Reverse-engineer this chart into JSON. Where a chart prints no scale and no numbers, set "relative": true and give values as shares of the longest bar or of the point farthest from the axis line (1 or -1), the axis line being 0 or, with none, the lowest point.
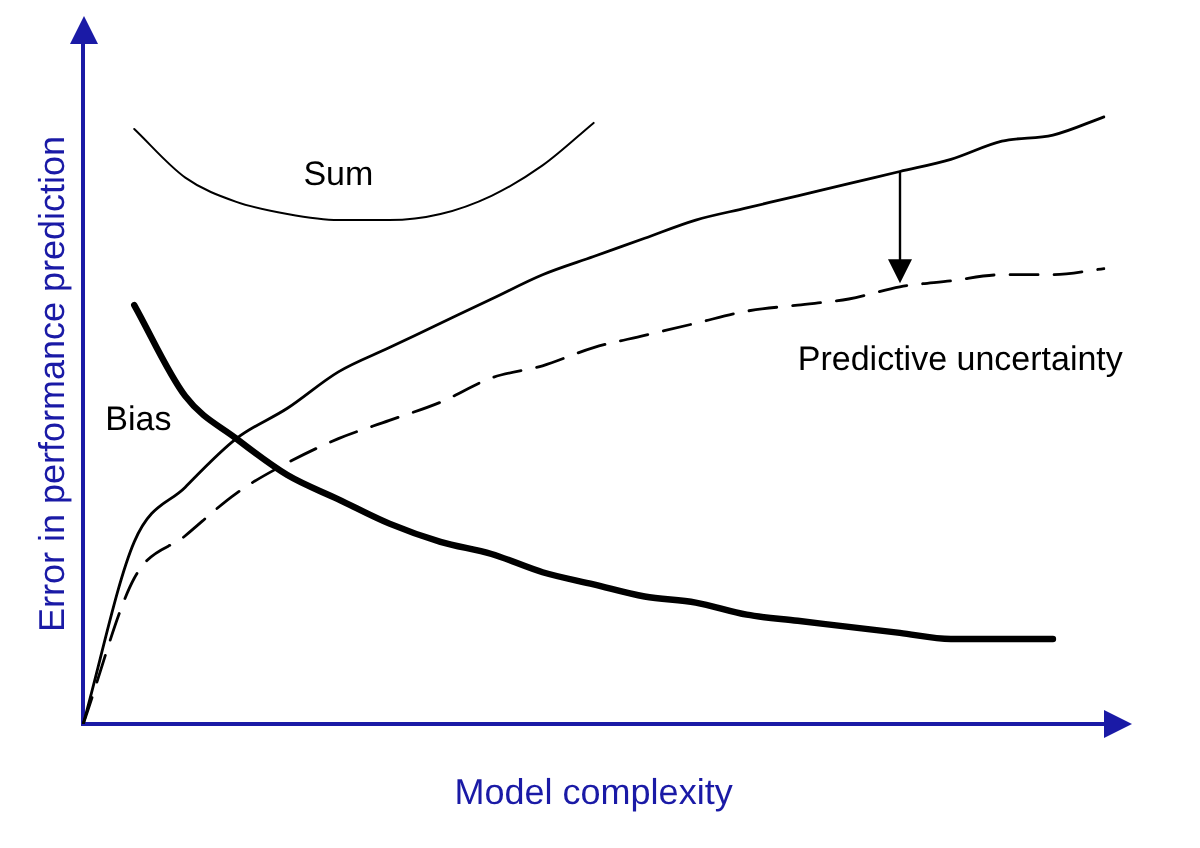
{
  "chart_data": {
    "type": "line",
    "relative": true,
    "xlabel": "Model complexity",
    "ylabel": "Error in performance prediction",
    "legend": false,
    "grid": false,
    "marker": "none",
    "categories": [
      null,
      null,
      null,
      null,
      null,
      null,
      null,
      null,
      null,
      null,
      null,
      null,
      null,
      null,
      null,
      null,
      null,
      null,
      null,
      null,
      null
    ],
    "series": [
      {
        "name": "Sum",
        "color": "#000000",
        "values": [
          null,
          0.98,
          0.9,
          0.86,
          0.84,
          0.83,
          0.83,
          0.84,
          0.87,
          0.92,
          0.99,
          null,
          null,
          null,
          null,
          null,
          null,
          null,
          null,
          null,
          null
        ]
      },
      {
        "name": "Bias",
        "color": "#000000",
        "values": [
          null,
          0.69,
          0.54,
          0.47,
          0.41,
          0.37,
          0.33,
          0.3,
          0.28,
          0.25,
          0.23,
          0.21,
          0.2,
          0.18,
          0.17,
          0.16,
          0.15,
          0.14,
          0.14,
          0.14,
          null
        ]
      },
      {
        "color": "#000000",
        "values": [
          0,
          0.3,
          0.39,
          0.47,
          0.52,
          0.58,
          0.62,
          0.66,
          0.7,
          0.74,
          0.77,
          0.8,
          0.83,
          0.85,
          0.87,
          0.89,
          0.91,
          0.93,
          0.96,
          0.97,
          1.0
        ]
      },
      {
        "color": "#000000",
        "line_style": "dashed",
        "values": [
          0,
          0.24,
          0.31,
          0.38,
          0.43,
          0.47,
          0.5,
          0.53,
          0.57,
          0.59,
          0.62,
          0.64,
          0.66,
          0.68,
          0.69,
          0.7,
          0.72,
          0.73,
          0.74,
          0.74,
          0.75
        ]
      }
    ],
    "annotations": [
      "Predictive uncertainty"
    ]
  }
}
